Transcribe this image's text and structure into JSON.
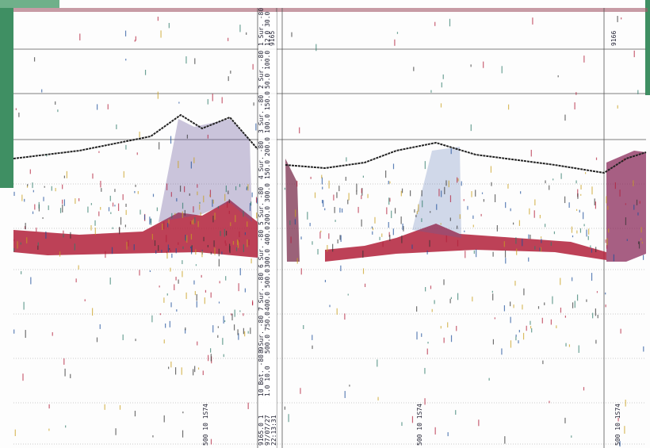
{
  "ping_markers": [
    "9165",
    "9166"
  ],
  "footer_marks": [
    "500 10 1S74",
    "500 10 1S74",
    "500 10 1S74"
  ],
  "channels": [
    {
      "name": "1 Sur. -80",
      "range": "12.0 30.0"
    },
    {
      "name": "2 Sur. -80",
      "range": "50.0 100.0"
    },
    {
      "name": "3 Sur. -80",
      "range": "100.0 150.0"
    },
    {
      "name": "4 Sur. -80",
      "range": "150.0 200.0"
    },
    {
      "name": "5 Sur. -80",
      "range": "200.0 300.0"
    },
    {
      "name": "6 Sur. -80",
      "range": "300.0 400.0"
    },
    {
      "name": "7 Sur. -80",
      "range": "400.0 500.0"
    },
    {
      "name": "8 Sur. -80",
      "range": "500.0 750.0"
    },
    {
      "name": "10 Bot. -80 9",
      "range": "1.0 10.0"
    }
  ],
  "record": {
    "id": "9165.0 1",
    "date": "97/07/27",
    "time": "22:13:31"
  }
}
